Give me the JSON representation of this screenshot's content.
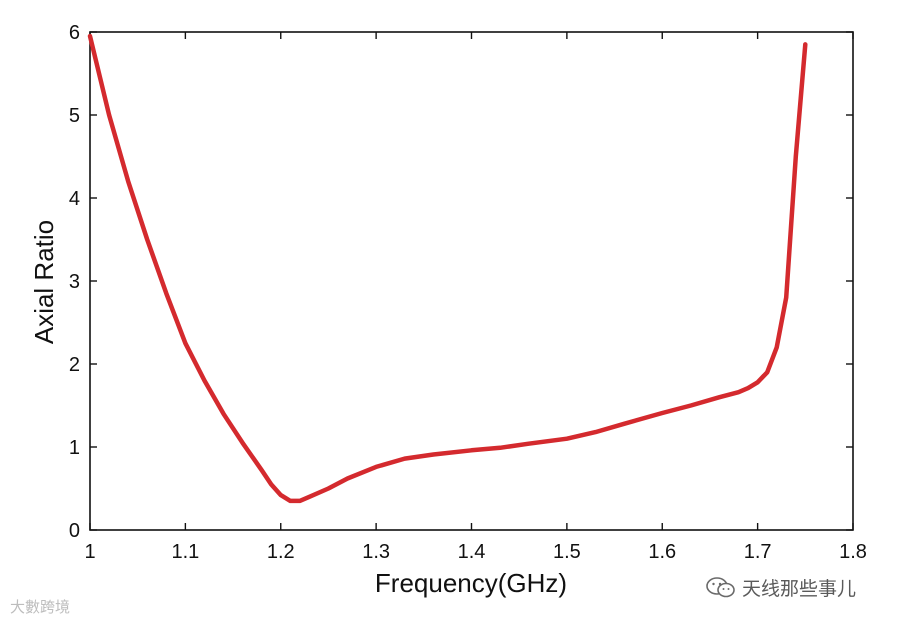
{
  "chart_data": {
    "type": "line",
    "title": "",
    "xlabel": "Frequency(GHz)",
    "ylabel": "Axial Ratio",
    "xlim": [
      1,
      1.8
    ],
    "ylim": [
      0,
      6
    ],
    "xticks": [
      "1",
      "1.1",
      "1.2",
      "1.3",
      "1.4",
      "1.5",
      "1.6",
      "1.7",
      "1.8"
    ],
    "yticks": [
      "0",
      "1",
      "2",
      "3",
      "4",
      "5",
      "6"
    ],
    "grid": false,
    "legend": "none",
    "series": [
      {
        "color": "#d42a2e",
        "x": [
          1.0,
          1.02,
          1.04,
          1.06,
          1.08,
          1.1,
          1.12,
          1.14,
          1.16,
          1.18,
          1.19,
          1.2,
          1.21,
          1.22,
          1.23,
          1.25,
          1.27,
          1.3,
          1.33,
          1.36,
          1.4,
          1.43,
          1.46,
          1.5,
          1.53,
          1.56,
          1.6,
          1.63,
          1.66,
          1.68,
          1.69,
          1.7,
          1.71,
          1.72,
          1.73,
          1.74,
          1.75
        ],
        "y": [
          5.95,
          5.0,
          4.2,
          3.5,
          2.85,
          2.25,
          1.8,
          1.4,
          1.05,
          0.72,
          0.55,
          0.42,
          0.35,
          0.35,
          0.4,
          0.5,
          0.62,
          0.76,
          0.86,
          0.91,
          0.96,
          0.99,
          1.04,
          1.1,
          1.18,
          1.28,
          1.41,
          1.5,
          1.6,
          1.66,
          1.71,
          1.78,
          1.9,
          2.2,
          2.8,
          4.5,
          5.85
        ]
      }
    ]
  },
  "watermarks": {
    "left": "大數跨境",
    "right": "天线那些事儿"
  },
  "icons": {
    "wechat": "wechat-icon"
  }
}
